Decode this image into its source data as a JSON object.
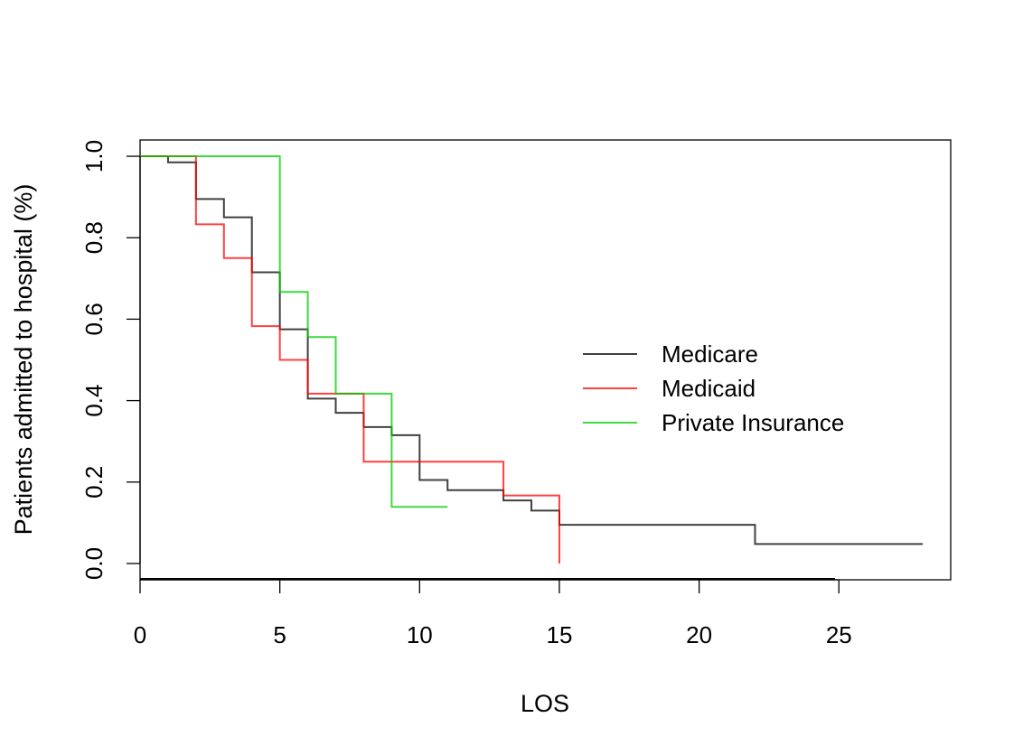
{
  "chart_data": {
    "type": "line",
    "title": "",
    "xlabel": "LOS",
    "ylabel": "Patients admitted to hospital (%)",
    "xlim": [
      0,
      29
    ],
    "ylim": [
      -0.04,
      1.04
    ],
    "x_ticks": [
      "0",
      "5",
      "10",
      "15",
      "20",
      "25"
    ],
    "x_tick_values": [
      0,
      5,
      10,
      15,
      20,
      25
    ],
    "y_ticks": [
      "0.0",
      "0.2",
      "0.4",
      "0.6",
      "0.8",
      "1.0"
    ],
    "y_tick_values": [
      0,
      0.2,
      0.4,
      0.6,
      0.8,
      1.0
    ],
    "grid": false,
    "legend_position": "right",
    "series": [
      {
        "name": "Medicare",
        "color": "#000000",
        "step": true,
        "x": [
          0,
          1,
          2,
          3,
          4,
          5,
          6,
          7,
          8,
          9,
          10,
          11,
          13,
          14,
          15,
          22,
          28
        ],
        "y": [
          1.0,
          0.985,
          0.895,
          0.85,
          0.715,
          0.575,
          0.405,
          0.37,
          0.335,
          0.315,
          0.205,
          0.18,
          0.155,
          0.13,
          0.095,
          0.048,
          0.048
        ]
      },
      {
        "name": "Medicaid",
        "color": "#ff0000",
        "step": true,
        "x": [
          0,
          2,
          3,
          4,
          5,
          6,
          8,
          13,
          15,
          15
        ],
        "y": [
          1.0,
          0.833,
          0.75,
          0.583,
          0.5,
          0.417,
          0.25,
          0.167,
          0.167,
          0.0
        ]
      },
      {
        "name": "Private Insurance",
        "color": "#00cc00",
        "step": true,
        "x": [
          0,
          5,
          6,
          7,
          9,
          11
        ],
        "y": [
          1.0,
          0.667,
          0.556,
          0.417,
          0.139,
          0.139
        ]
      }
    ]
  }
}
